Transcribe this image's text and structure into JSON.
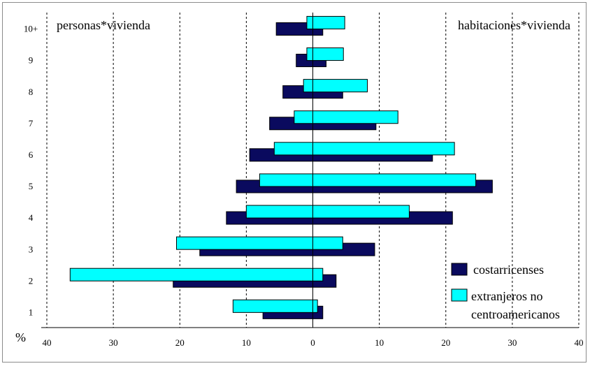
{
  "chart_data": {
    "type": "bar",
    "orientation": "horizontal",
    "layout": "back-to-back population pyramid",
    "corner_labels": {
      "left": "personas*vivienda",
      "right": "habitaciones*vivienda"
    },
    "y_unit_label": "%",
    "categories": [
      "1",
      "2",
      "3",
      "4",
      "5",
      "6",
      "7",
      "8",
      "9",
      "10+"
    ],
    "xlim": [
      -40,
      40
    ],
    "xticks": [
      -40,
      -30,
      -20,
      -10,
      0,
      10,
      20,
      30,
      40
    ],
    "xtick_labels": [
      "40",
      "30",
      "20",
      "10",
      "0",
      "10",
      "20",
      "30",
      "40"
    ],
    "grid": "vertical dashed",
    "legend_position": "right, lower",
    "series": [
      {
        "name": "costarricenses",
        "color": "#0a0a5e",
        "left_values": [
          7.5,
          21,
          17,
          13,
          11.5,
          9.5,
          6.5,
          4.5,
          2.5,
          5.5
        ],
        "right_values": [
          1.5,
          3.5,
          9.3,
          21,
          27,
          18,
          9.5,
          4.5,
          2,
          1.5
        ]
      },
      {
        "name": "extranjeros no centroamericanos",
        "legend_lines": [
          "extranjeros no",
          "centroamericanos"
        ],
        "color": "#00ffff",
        "left_values": [
          12,
          36.5,
          20.5,
          10,
          8,
          5.8,
          2.8,
          1.4,
          0.9,
          0.9
        ],
        "right_values": [
          0.7,
          1.5,
          4.5,
          14.5,
          24.5,
          21.3,
          12.8,
          8.2,
          4.6,
          4.8
        ]
      }
    ]
  }
}
